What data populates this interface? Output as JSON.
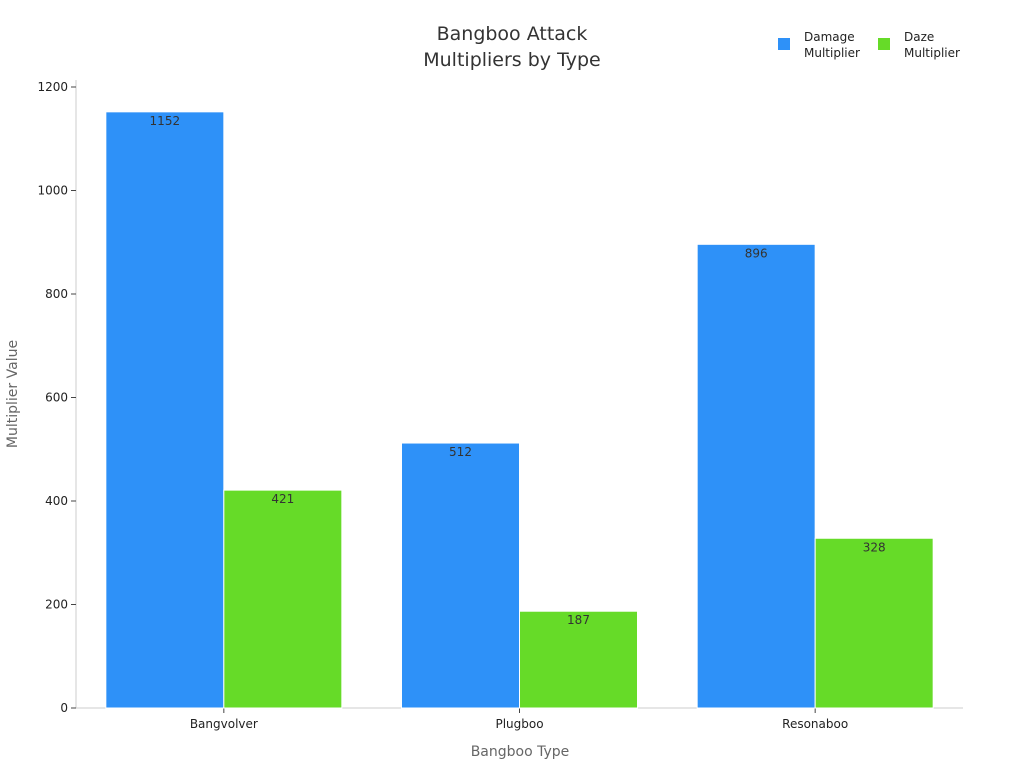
{
  "chart_data": {
    "type": "bar",
    "title": [
      "Bangboo Attack",
      "Multipliers by Type"
    ],
    "xlabel": "Bangboo Type",
    "ylabel": "Multiplier Value",
    "categories": [
      "Bangvolver",
      "Plugboo",
      "Resonaboo"
    ],
    "series": [
      {
        "name": [
          "Damage",
          "Multiplier"
        ],
        "values": [
          1152,
          512,
          896
        ],
        "color": "#2e91f8"
      },
      {
        "name": [
          "Daze",
          "Multiplier"
        ],
        "values": [
          421,
          187,
          328
        ],
        "color": "#66db28"
      }
    ],
    "ylim": [
      0,
      1200
    ],
    "yticks": [
      0,
      200,
      400,
      600,
      800,
      1000,
      1200
    ],
    "legend_position": "top-right",
    "grid": false
  }
}
